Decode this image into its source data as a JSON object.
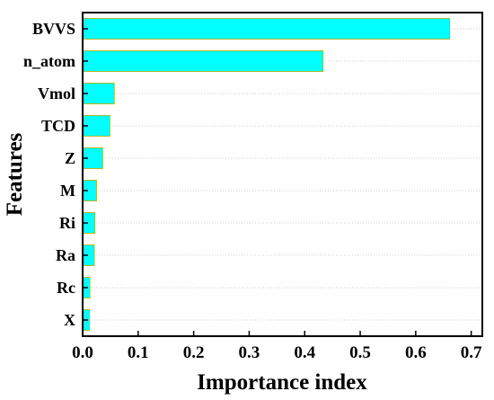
{
  "chart_data": {
    "type": "bar",
    "orientation": "horizontal",
    "categories": [
      "BVVS",
      "n_atom",
      "Vmol",
      "TCD",
      "Z",
      "M",
      "Ri",
      "Ra",
      "Rc",
      "X"
    ],
    "values": [
      0.661,
      0.433,
      0.057,
      0.049,
      0.036,
      0.025,
      0.022,
      0.021,
      0.013,
      0.012
    ],
    "xlabel": "Importance index",
    "ylabel": "Features",
    "xlim": [
      0,
      0.72
    ],
    "xticks": [
      0.0,
      0.1,
      0.2,
      0.3,
      0.4,
      0.5,
      0.6,
      0.7
    ],
    "xtick_labels": [
      "0.0",
      "0.1",
      "0.2",
      "0.3",
      "0.4",
      "0.5",
      "0.6",
      "0.7"
    ],
    "grid": "horizontal dotted",
    "bar_color": "#00ffff",
    "bar_edge_color": "#b5b52a"
  }
}
